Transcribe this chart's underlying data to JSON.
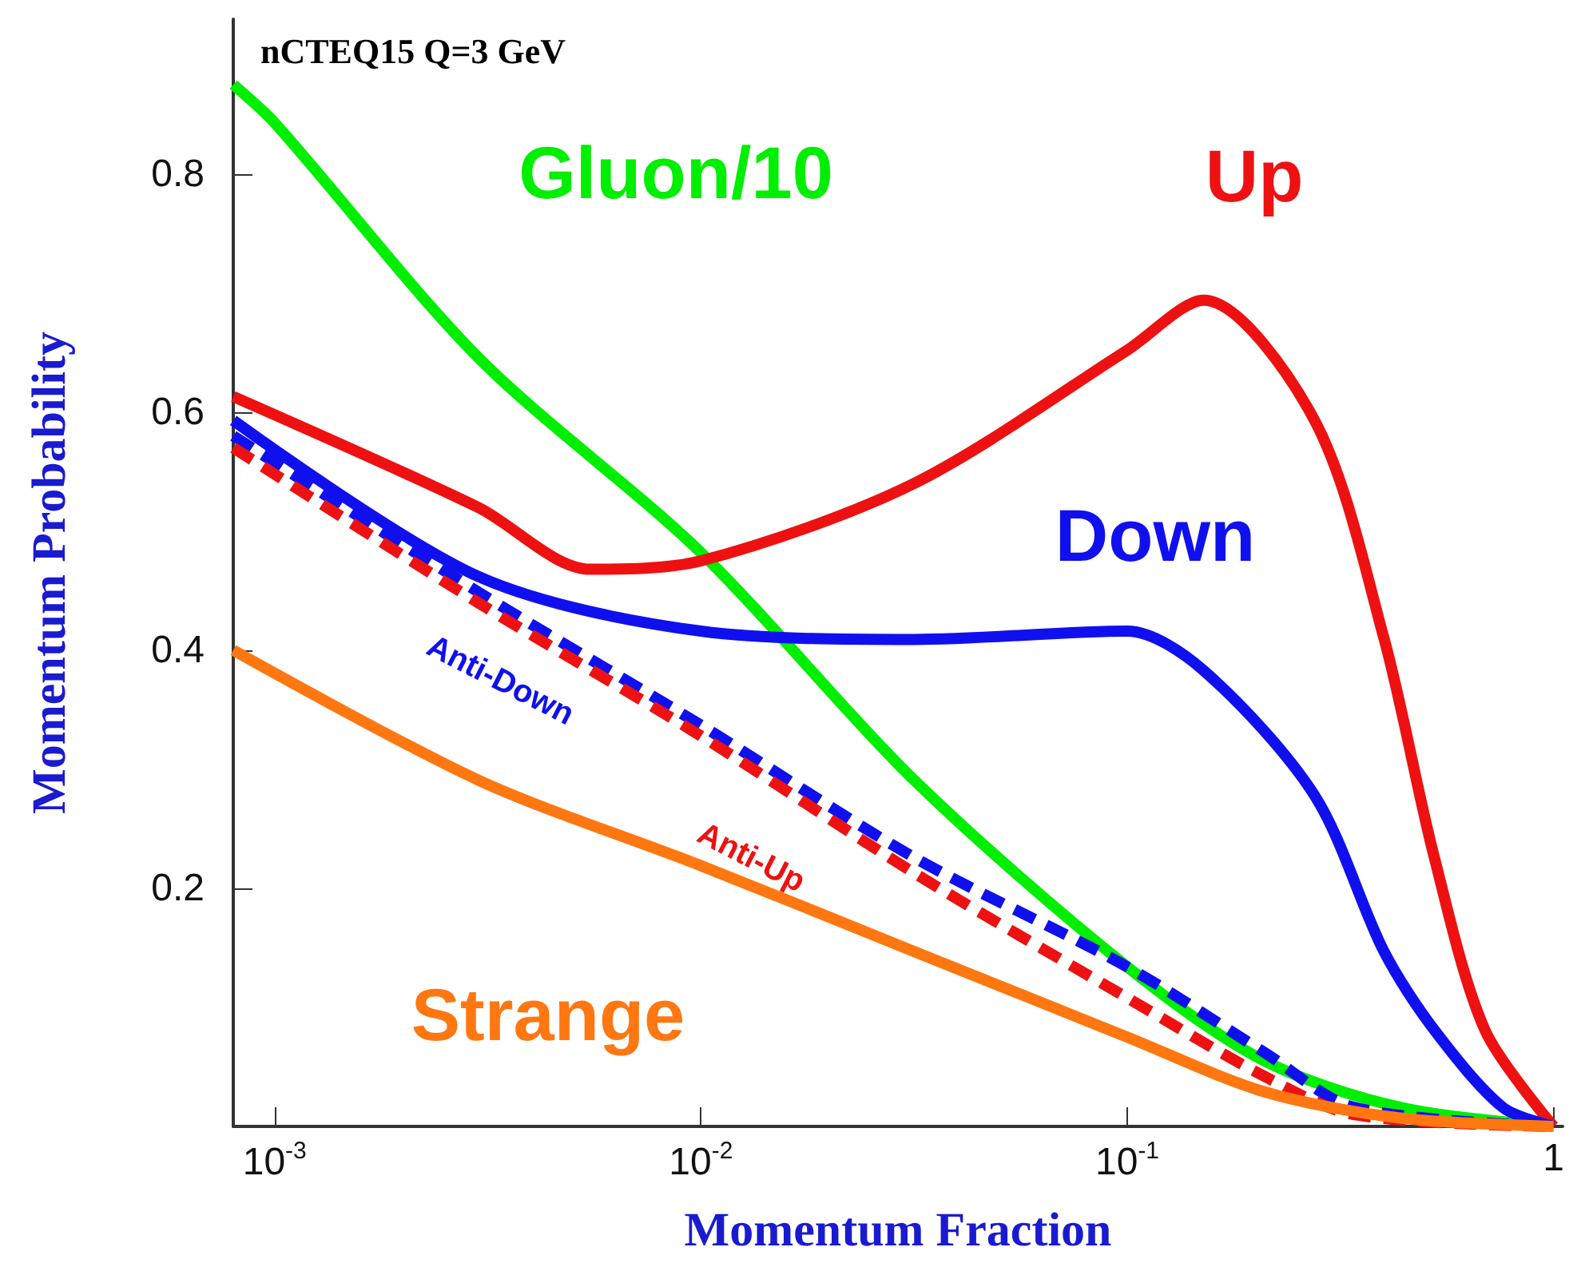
{
  "chart_data": {
    "type": "line",
    "title": "nCTEQ15 Q=3 GeV",
    "xlabel": "Momentum Fraction",
    "ylabel": "Momentum Probability",
    "log": "x",
    "grid": false,
    "legend": false,
    "marker": "none",
    "xlim": [
      0.0008,
      1.05
    ],
    "ylim": [
      0,
      0.93
    ],
    "xticks": [
      {
        "value": 0.001,
        "label": "10$^{-3}$"
      },
      {
        "value": 0.01,
        "label": "10$^{-2}$"
      },
      {
        "value": 0.1,
        "label": "10$^{-1}$"
      },
      {
        "value": 1,
        "label": "1"
      }
    ],
    "yticks": [
      0.2,
      0.4,
      0.6,
      0.8
    ],
    "series": [
      {
        "name": "Gluon/10",
        "color": "#00ee00",
        "line_style": "solid",
        "x": [
          0.0008,
          0.001,
          0.003,
          0.01,
          0.0316,
          0.1,
          0.21,
          0.437,
          1
        ],
        "values": [
          0.875,
          0.843,
          0.646,
          0.482,
          0.291,
          0.134,
          0.055,
          0.016,
          0
        ]
      },
      {
        "name": "Up",
        "color": "#ee1111",
        "line_style": "solid",
        "x": [
          0.0008,
          0.003,
          0.0055,
          0.01,
          0.0316,
          0.1,
          0.151,
          0.275,
          0.4,
          0.525,
          0.69,
          1
        ],
        "values": [
          0.613,
          0.52,
          0.468,
          0.475,
          0.54,
          0.652,
          0.694,
          0.593,
          0.41,
          0.226,
          0.081,
          0
        ]
      },
      {
        "name": "Down",
        "color": "#1010ee",
        "line_style": "solid",
        "x": [
          0.0008,
          0.003,
          0.01,
          0.0316,
          0.1,
          0.151,
          0.275,
          0.4,
          0.525,
          0.76,
          1
        ],
        "values": [
          0.593,
          0.462,
          0.416,
          0.409,
          0.416,
          0.383,
          0.278,
          0.147,
          0.081,
          0.016,
          0
        ]
      },
      {
        "name": "Anti-Down",
        "color": "#1010ee",
        "line_style": "dashed",
        "x": [
          0.0008,
          0.003,
          0.01,
          0.0316,
          0.1,
          0.21,
          0.34,
          1
        ],
        "values": [
          0.58,
          0.449,
          0.337,
          0.226,
          0.134,
          0.062,
          0.016,
          0
        ]
      },
      {
        "name": "Anti-Up",
        "color": "#ee1111",
        "line_style": "dashed",
        "x": [
          0.0008,
          0.003,
          0.01,
          0.0316,
          0.1,
          0.21,
          0.34,
          1
        ],
        "values": [
          0.57,
          0.44,
          0.328,
          0.213,
          0.108,
          0.042,
          0.01,
          0
        ]
      },
      {
        "name": "Strange",
        "color": "#ff7711",
        "line_style": "solid",
        "x": [
          0.0008,
          0.003,
          0.01,
          0.0316,
          0.1,
          0.21,
          0.437,
          1
        ],
        "values": [
          0.4,
          0.291,
          0.219,
          0.147,
          0.075,
          0.029,
          0.007,
          0
        ]
      }
    ]
  }
}
